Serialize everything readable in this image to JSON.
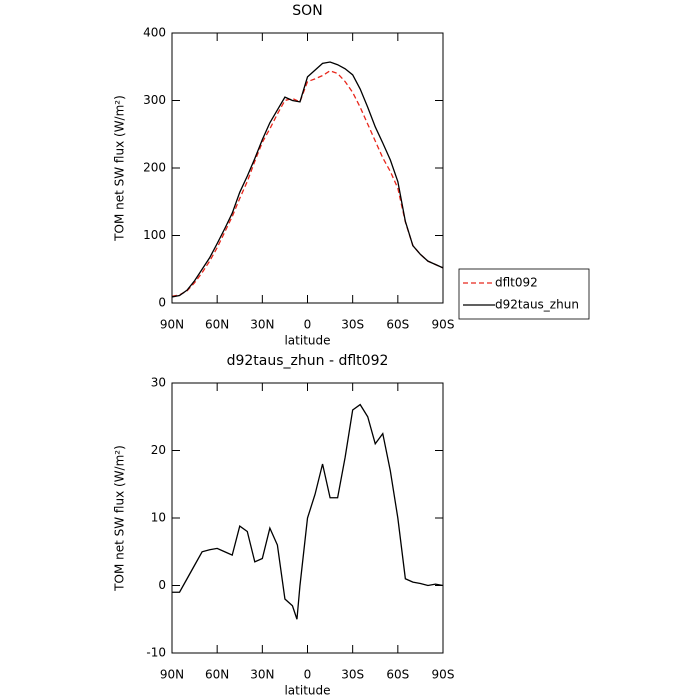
{
  "chart_data": [
    {
      "type": "line",
      "title": "SON",
      "xlabel": "latitude",
      "ylabel": "TOM net SW flux (W/m²)",
      "x": [
        90,
        85,
        80,
        75,
        70,
        65,
        60,
        55,
        50,
        45,
        40,
        35,
        30,
        25,
        20,
        15,
        10,
        5,
        0,
        -5,
        -10,
        -15,
        -20,
        -25,
        -30,
        -35,
        -40,
        -45,
        -50,
        -55,
        -60,
        -65,
        -70,
        -75,
        -80,
        -85,
        -90
      ],
      "series": [
        {
          "name": "dflt092",
          "color": "#e8271c",
          "linestyle": "dashed",
          "values": [
            10,
            12,
            18,
            30,
            45,
            62,
            82,
            105,
            128,
            155,
            180,
            210,
            238,
            258,
            280,
            300,
            303,
            298,
            328,
            332,
            337,
            344,
            340,
            328,
            312,
            290,
            265,
            240,
            215,
            195,
            170,
            120,
            85,
            72,
            62,
            57,
            52
          ]
        },
        {
          "name": "d92taus_zhun",
          "color": "#000000",
          "linestyle": "solid",
          "values": [
            9,
            11,
            19,
            33,
            50,
            67,
            88,
            110,
            133,
            164,
            188,
            214,
            242,
            267,
            286,
            305,
            300,
            298,
            335,
            345,
            355,
            357,
            353,
            347,
            338,
            317,
            290,
            261,
            237,
            212,
            180,
            121,
            85,
            72,
            62,
            57,
            52
          ]
        }
      ],
      "xlim": [
        90,
        -90
      ],
      "xticks": [
        {
          "value": 90,
          "label": "90N"
        },
        {
          "value": 60,
          "label": "60N"
        },
        {
          "value": 30,
          "label": "30N"
        },
        0,
        {
          "value": -30,
          "label": "30S"
        },
        {
          "value": -60,
          "label": "60S"
        },
        {
          "value": -90,
          "label": "90S"
        }
      ],
      "ylim": [
        0,
        400
      ],
      "yticks": [
        0,
        100,
        200,
        300,
        400
      ],
      "legend": "right"
    },
    {
      "type": "line",
      "title": "d92taus_zhun - dflt092",
      "xlabel": "latitude",
      "ylabel": "TOM net SW flux (W/m²)",
      "x": [
        90,
        85,
        80,
        75,
        70,
        65,
        60,
        55,
        50,
        45,
        40,
        35,
        30,
        25,
        20,
        15,
        10,
        7,
        5,
        0,
        -5,
        -10,
        -15,
        -20,
        -25,
        -30,
        -35,
        -40,
        -45,
        -50,
        -55,
        -60,
        -65,
        -70,
        -75,
        -80,
        -85,
        -90
      ],
      "values": [
        -1,
        -1,
        1,
        3,
        5,
        5.3,
        5.5,
        5,
        4.5,
        8.8,
        8,
        3.5,
        4,
        8.5,
        6,
        -2,
        -3,
        -5,
        0,
        10,
        13.5,
        18,
        13,
        13,
        19,
        26,
        26.8,
        25,
        21,
        22.5,
        17,
        10,
        1,
        0.5,
        0.3,
        0,
        0.2,
        0
      ],
      "color": "#000000",
      "xlim": [
        90,
        -90
      ],
      "xticks": [
        {
          "value": 90,
          "label": "90N"
        },
        {
          "value": 60,
          "label": "60N"
        },
        {
          "value": 30,
          "label": "30N"
        },
        0,
        {
          "value": -30,
          "label": "30S"
        },
        {
          "value": -60,
          "label": "60S"
        },
        {
          "value": -90,
          "label": "90S"
        }
      ],
      "ylim": [
        -10,
        30
      ],
      "yticks": [
        -10,
        0,
        10,
        20,
        30
      ]
    }
  ]
}
